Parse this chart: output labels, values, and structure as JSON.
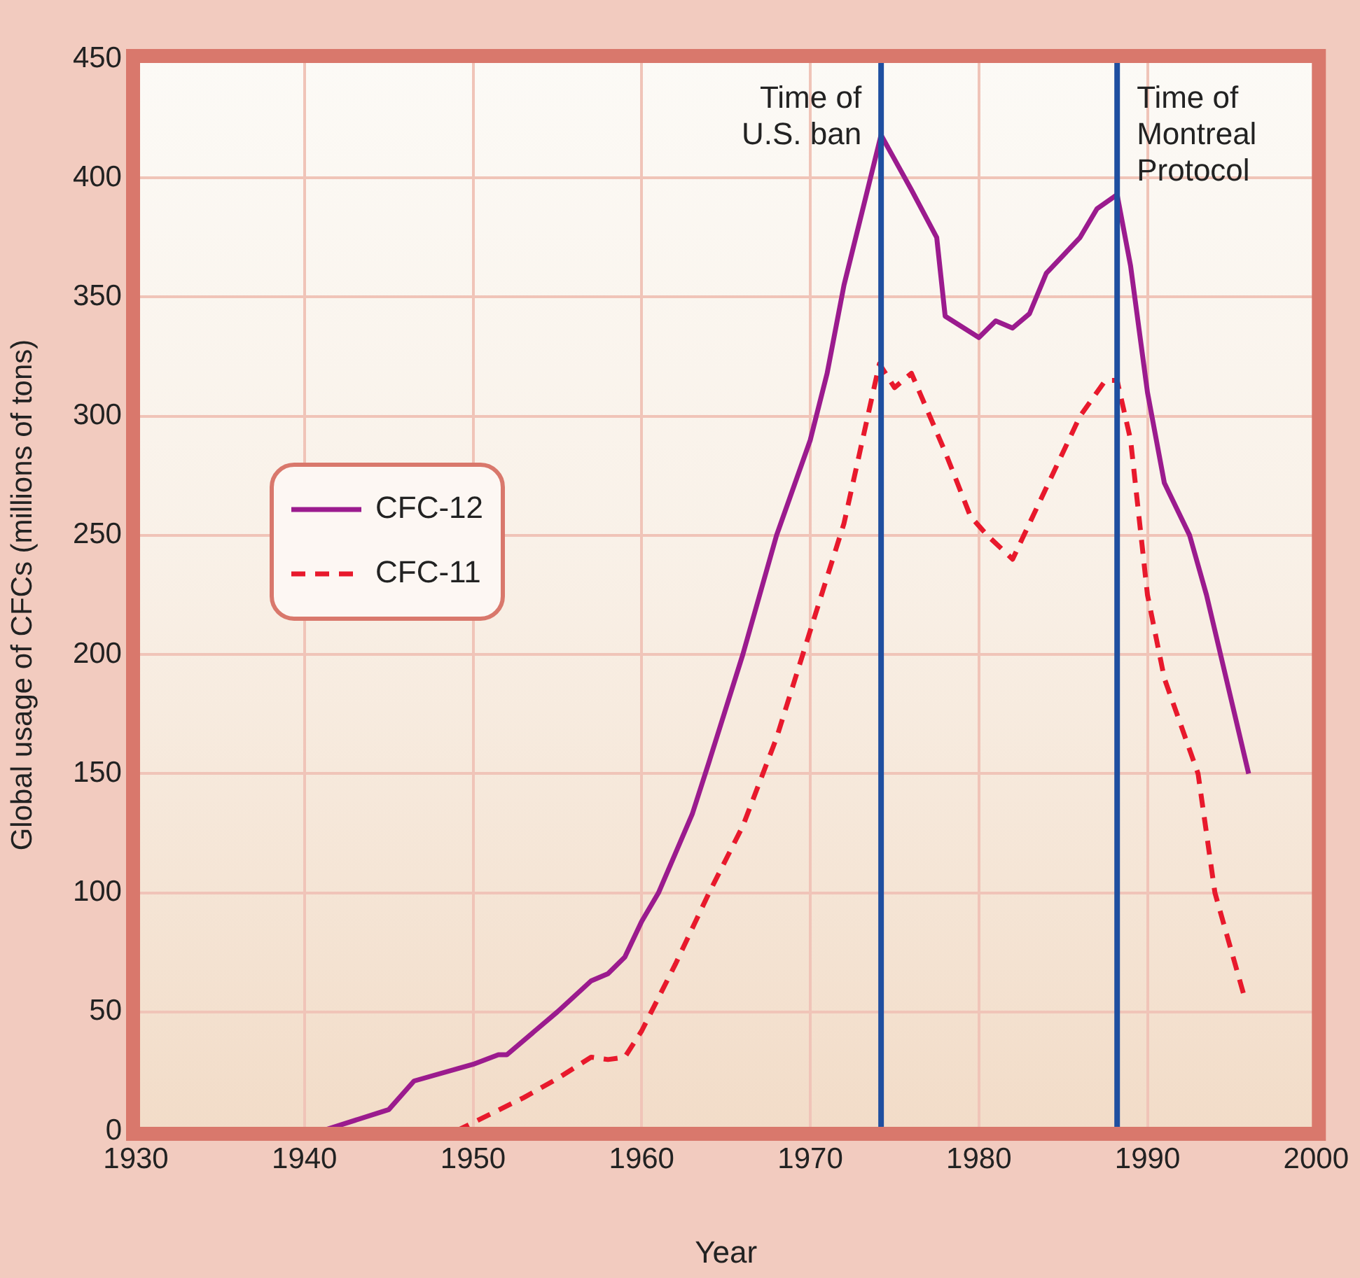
{
  "chart_data": {
    "type": "line",
    "xlabel": "Year",
    "ylabel": "Global usage of CFCs (millions of tons)",
    "xlim": [
      1930,
      2000
    ],
    "xticks": [
      1930,
      1940,
      1950,
      1960,
      1970,
      1980,
      1990,
      2000
    ],
    "ylim": [
      0,
      450
    ],
    "yticks": [
      0,
      50,
      100,
      150,
      200,
      250,
      300,
      350,
      400,
      450
    ],
    "grid": true,
    "legend": "left",
    "series": [
      {
        "name": "CFC-12",
        "color": "#9b1b8e",
        "line_style": "solid",
        "x": [
          1941,
          1945,
          1946.5,
          1950,
          1951.5,
          1952,
          1955,
          1957,
          1958,
          1959,
          1960,
          1961,
          1963,
          1964,
          1966,
          1968,
          1970,
          1971,
          1972,
          1974.2,
          1976,
          1977.5,
          1978,
          1980,
          1981,
          1982,
          1983,
          1984,
          1986,
          1987,
          1988.2,
          1989,
          1990,
          1991,
          1992.5,
          1993.5,
          1995,
          1996
        ],
        "values": [
          0,
          9,
          21,
          28,
          32,
          32,
          50,
          63,
          66,
          73,
          88,
          100,
          133,
          155,
          200,
          250,
          290,
          318,
          355,
          418,
          395,
          375,
          342,
          333,
          340,
          337,
          343,
          360,
          375,
          387,
          393,
          363,
          310,
          272,
          250,
          225,
          180,
          150
        ]
      },
      {
        "name": "CFC-11",
        "color": "#e8192c",
        "line_style": "dashed",
        "x": [
          1949,
          1951,
          1953,
          1955,
          1957,
          1958,
          1959,
          1960,
          1962,
          1964,
          1966,
          1968,
          1970,
          1972,
          1974.1,
          1975,
          1976,
          1978,
          1979.5,
          1980.5,
          1982,
          1984,
          1986,
          1987.5,
          1988.2,
          1989,
          1990,
          1991,
          1992,
          1993,
          1994,
          1995.8
        ],
        "values": [
          0,
          7,
          14,
          22,
          31,
          30,
          31,
          42,
          70,
          100,
          128,
          165,
          210,
          255,
          322,
          312,
          318,
          285,
          258,
          250,
          240,
          270,
          300,
          315,
          315,
          290,
          225,
          190,
          170,
          150,
          100,
          55
        ]
      }
    ],
    "ref_lines": [
      {
        "axis": "x",
        "value": 1974.2,
        "label": "Time of U.S. ban",
        "color": "#1f4fa0"
      },
      {
        "axis": "x",
        "value": 1988.2,
        "label": "Time of Montreal Protocol",
        "color": "#1f4fa0"
      }
    ]
  }
}
